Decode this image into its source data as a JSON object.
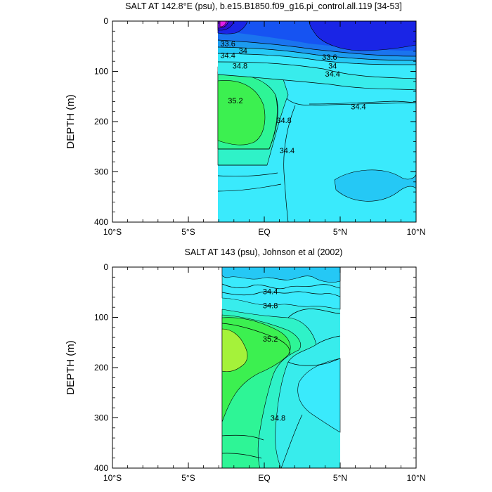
{
  "chart_data": [
    {
      "type": "contour",
      "title": "SALT AT 142.8°E (psu), b.e15.B1850.f09_g16.pi_control.all.119 [34-53]",
      "ylabel": "DEPTH (m)",
      "xlabel": "",
      "xlim": [
        -10,
        10
      ],
      "ylim": [
        400,
        0
      ],
      "x_ticks": [
        -10,
        -5,
        0,
        5,
        10
      ],
      "x_tick_labels": [
        "10°S",
        "5°S",
        "EQ",
        "5°N",
        "10°N"
      ],
      "y_ticks": [
        0,
        100,
        200,
        300,
        400
      ],
      "y_tick_labels": [
        "0",
        "100",
        "200",
        "300",
        "400"
      ],
      "data_extent_x": [
        -3,
        10
      ],
      "contour_labels": [
        {
          "text": "33.6",
          "x": -2.4,
          "y": 45
        },
        {
          "text": "34",
          "x": -1.4,
          "y": 59
        },
        {
          "text": "34.4",
          "x": -2.4,
          "y": 68
        },
        {
          "text": "34.8",
          "x": -1.6,
          "y": 89
        },
        {
          "text": "33.6",
          "x": 4.3,
          "y": 71
        },
        {
          "text": "34",
          "x": 4.5,
          "y": 89
        },
        {
          "text": "34.4",
          "x": 4.5,
          "y": 105
        },
        {
          "text": "35.2",
          "x": -1.9,
          "y": 158
        },
        {
          "text": "34.8",
          "x": 1.3,
          "y": 197
        },
        {
          "text": "34.4",
          "x": 1.5,
          "y": 257
        },
        {
          "text": "34.4",
          "x": 6.2,
          "y": 170
        }
      ]
    },
    {
      "type": "contour",
      "title": "SALT AT 143 (psu), Johnson et al (2002)",
      "ylabel": "DEPTH (m)",
      "xlabel": "",
      "xlim": [
        -10,
        10
      ],
      "ylim": [
        400,
        0
      ],
      "x_ticks": [
        -10,
        -5,
        0,
        5,
        10
      ],
      "x_tick_labels": [
        "10°S",
        "5°S",
        "EQ",
        "5°N",
        "10°N"
      ],
      "y_ticks": [
        0,
        100,
        200,
        300,
        400
      ],
      "y_tick_labels": [
        "0",
        "100",
        "200",
        "300",
        "400"
      ],
      "data_extent_x": [
        -2.8,
        5
      ],
      "contour_labels": [
        {
          "text": "34.4",
          "x": 0.4,
          "y": 48
        },
        {
          "text": "34.8",
          "x": 0.4,
          "y": 76
        },
        {
          "text": "35.2",
          "x": 0.4,
          "y": 143
        },
        {
          "text": "34.8",
          "x": 0.9,
          "y": 300
        }
      ]
    }
  ],
  "colors": {
    "fill_35_6": "#a5f23a",
    "fill_35_2": "#3cf050",
    "fill_35_0": "#2ef596",
    "fill_34_8": "#2ff2c8",
    "fill_34_6": "#38ecec",
    "fill_34_4": "#3aeafc",
    "fill_34_2": "#25c8f5",
    "fill_34_0": "#1c9bf0",
    "fill_33_8": "#1a74ef",
    "fill_33_6": "#1653f2",
    "fill_33_4": "#1a25e6",
    "fill_33_0": "#2b11d8",
    "fill_32_5": "#7d10e6",
    "fill_32_0": "#e11ee8"
  }
}
